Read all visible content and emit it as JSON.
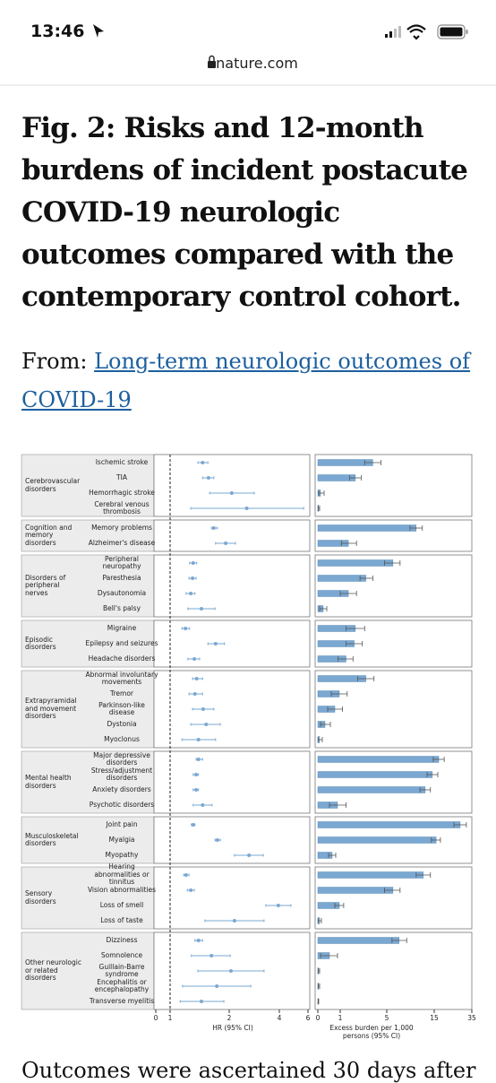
{
  "status_bar": {
    "time": "13:46"
  },
  "browser": {
    "url": "nature.com"
  },
  "article": {
    "title": "Fig. 2: Risks and 12-month burdens of incident postacute COVID-19 neurologic outcomes compared with the contemporary control cohort.",
    "from_label": "From:",
    "link": "Long-term neurologic outcomes of COVID-19",
    "body_text": "Outcomes were ascertained 30 days after"
  },
  "chart_data": {
    "type": "forest",
    "color": "#7aa8d2",
    "reference_line": 1,
    "xlim": [
      0,
      6
    ],
    "xticks": [
      0,
      1,
      2,
      4,
      6
    ],
    "xlabel": "HR (95% CI)",
    "x2lim": [
      0,
      35
    ],
    "x2ticks": [
      0,
      1,
      5,
      15,
      35
    ],
    "x2label": "Excess burden per 1,000 persons (95% CI)",
    "groups": [
      {
        "name": "Cerebrovascular disorders",
        "outcomes": [
          {
            "name": "Ischemic stroke",
            "hr": 1.55,
            "hr_ci": [
              1.47,
              1.64
            ],
            "burden": 3.8,
            "burden_ci": [
              3.1,
              4.5
            ]
          },
          {
            "name": "TIA",
            "hr": 1.65,
            "hr_ci": [
              1.55,
              1.74
            ],
            "burden": 2.3,
            "burden_ci": [
              1.8,
              2.8
            ]
          },
          {
            "name": "Hemorrhagic stroke",
            "hr": 2.1,
            "hr_ci": [
              1.67,
              3.0
            ],
            "burden": 0.12,
            "burden_ci": [
              0.04,
              0.28
            ]
          },
          {
            "name": "Cerebral venous thrombosis",
            "hr": 2.7,
            "hr_ci": [
              1.35,
              5.7
            ],
            "burden": 0.04,
            "burden_ci": [
              0.01,
              0.08
            ]
          }
        ]
      },
      {
        "name": "Cognition and memory disorders",
        "outcomes": [
          {
            "name": "Memory problems",
            "hr": 1.74,
            "hr_ci": [
              1.7,
              1.8
            ],
            "burden": 11.2,
            "burden_ci": [
              9.9,
              12.5
            ]
          },
          {
            "name": "Alzheimer's disease",
            "hr": 1.94,
            "hr_ci": [
              1.77,
              2.25
            ],
            "burden": 1.7,
            "burden_ci": [
              1.1,
              2.4
            ]
          }
        ]
      },
      {
        "name": "Disorders of peripheral nerves",
        "outcomes": [
          {
            "name": "Peripheral neuropathy",
            "hr": 1.39,
            "hr_ci": [
              1.33,
              1.45
            ],
            "burden": 6.3,
            "burden_ci": [
              4.8,
              7.8
            ]
          },
          {
            "name": "Paresthesia",
            "hr": 1.38,
            "hr_ci": [
              1.32,
              1.44
            ],
            "burden": 3.2,
            "burden_ci": [
              2.7,
              3.8
            ]
          },
          {
            "name": "Dysautonomia",
            "hr": 1.35,
            "hr_ci": [
              1.27,
              1.42
            ],
            "burden": 1.7,
            "burden_ci": [
              1.0,
              2.4
            ]
          },
          {
            "name": "Bell's palsy",
            "hr": 1.53,
            "hr_ci": [
              1.3,
              1.76
            ],
            "burden": 0.24,
            "burden_ci": [
              0.08,
              0.4
            ]
          }
        ]
      },
      {
        "name": "Episodic disorders",
        "outcomes": [
          {
            "name": "Migraine",
            "hr": 1.26,
            "hr_ci": [
              1.2,
              1.33
            ],
            "burden": 2.3,
            "burden_ci": [
              1.5,
              3.1
            ]
          },
          {
            "name": "Epilepsy and seizures",
            "hr": 1.77,
            "hr_ci": [
              1.64,
              1.92
            ],
            "burden": 2.2,
            "burden_ci": [
              1.5,
              2.9
            ]
          },
          {
            "name": "Headache disorders",
            "hr": 1.41,
            "hr_ci": [
              1.3,
              1.5
            ],
            "burden": 1.5,
            "burden_ci": [
              0.9,
              2.1
            ]
          }
        ]
      },
      {
        "name": "Extrapyramidal and movement disorders",
        "outcomes": [
          {
            "name": "Abnormal involuntary movements",
            "hr": 1.45,
            "hr_ci": [
              1.38,
              1.55
            ],
            "burden": 3.2,
            "burden_ci": [
              2.5,
              3.9
            ]
          },
          {
            "name": "Tremor",
            "hr": 1.42,
            "hr_ci": [
              1.32,
              1.55
            ],
            "burden": 0.96,
            "burden_ci": [
              0.6,
              1.6
            ]
          },
          {
            "name": "Parkinson-like disease",
            "hr": 1.56,
            "hr_ci": [
              1.38,
              1.74
            ],
            "burden": 0.76,
            "burden_ci": [
              0.44,
              1.2
            ]
          },
          {
            "name": "Dystonia",
            "hr": 1.61,
            "hr_ci": [
              1.35,
              1.85
            ],
            "burden": 0.32,
            "burden_ci": [
              0.12,
              0.56
            ]
          },
          {
            "name": "Myoclonus",
            "hr": 1.48,
            "hr_ci": [
              1.2,
              1.77
            ],
            "burden": 0.08,
            "burden_ci": [
              0.01,
              0.2
            ]
          }
        ]
      },
      {
        "name": "Mental health disorders",
        "outcomes": [
          {
            "name": "Major depressive disorders",
            "hr": 1.48,
            "hr_ci": [
              1.44,
              1.55
            ],
            "burden": 17.4,
            "burden_ci": [
              14.8,
              20.3
            ]
          },
          {
            "name": "Stress/adjustment disorders",
            "hr": 1.44,
            "hr_ci": [
              1.39,
              1.48
            ],
            "burden": 14.6,
            "burden_ci": [
              13.5,
              16.9
            ]
          },
          {
            "name": "Anxiety disorders",
            "hr": 1.44,
            "hr_ci": [
              1.39,
              1.48
            ],
            "burden": 13.1,
            "burden_ci": [
              12.0,
              14.2
            ]
          },
          {
            "name": "Psychotic disorders",
            "hr": 1.55,
            "hr_ci": [
              1.39,
              1.71
            ],
            "burden": 0.88,
            "burden_ci": [
              0.52,
              1.5
            ]
          }
        ]
      },
      {
        "name": "Musculoskeletal disorders",
        "outcomes": [
          {
            "name": "Joint pain",
            "hr": 1.39,
            "hr_ci": [
              1.36,
              1.42
            ],
            "burden": 28.8,
            "burden_ci": [
              25.5,
              32.1
            ]
          },
          {
            "name": "Myalgia",
            "hr": 1.8,
            "hr_ci": [
              1.76,
              1.85
            ],
            "burden": 16,
            "burden_ci": [
              14.4,
              18.3
            ]
          },
          {
            "name": "Myopathy",
            "hr": 2.79,
            "hr_ci": [
              2.21,
              3.36
            ],
            "burden": 0.64,
            "burden_ci": [
              0.48,
              0.8
            ]
          }
        ]
      },
      {
        "name": "Sensory disorders",
        "outcomes": [
          {
            "name": "Hearing abnormalities or tinnitus",
            "hr": 1.27,
            "hr_ci": [
              1.23,
              1.32
            ],
            "burden": 12.7,
            "burden_ci": [
              11.2,
              14.2
            ]
          },
          {
            "name": "Vision abnormalities",
            "hr": 1.35,
            "hr_ci": [
              1.29,
              1.41
            ],
            "burden": 6.3,
            "burden_ci": [
              4.8,
              7.8
            ]
          },
          {
            "name": "Loss of smell",
            "hr": 3.96,
            "hr_ci": [
              3.46,
              4.81
            ],
            "burden": 0.96,
            "burden_ci": [
              0.76,
              1.3
            ]
          },
          {
            "name": "Loss of taste",
            "hr": 2.21,
            "hr_ci": [
              1.59,
              3.39
            ],
            "burden": 0.08,
            "burden_ci": [
              0.01,
              0.16
            ]
          }
        ]
      },
      {
        "name": "Other neurologic or related disorders",
        "outcomes": [
          {
            "name": "Dizziness",
            "hr": 1.48,
            "hr_ci": [
              1.42,
              1.55
            ],
            "burden": 7.6,
            "burden_ci": [
              6.1,
              9.2
            ]
          },
          {
            "name": "Somnolence",
            "hr": 1.7,
            "hr_ci": [
              1.36,
              2.04
            ],
            "burden": 0.52,
            "burden_ci": [
              0.12,
              0.88
            ]
          },
          {
            "name": "Guillain-Barre syndrome",
            "hr": 2.07,
            "hr_ci": [
              1.47,
              3.39
            ],
            "burden": 0.04,
            "burden_ci": [
              0.01,
              0.08
            ]
          },
          {
            "name": "Encephalitis or encephalopathy",
            "hr": 1.79,
            "hr_ci": [
              1.21,
              2.86
            ],
            "burden": 0.04,
            "burden_ci": [
              0.01,
              0.08
            ]
          },
          {
            "name": "Transverse myelitis",
            "hr": 1.53,
            "hr_ci": [
              1.17,
              1.91
            ],
            "burden": 0.02,
            "burden_ci": [
              0.01,
              0.04
            ]
          }
        ]
      }
    ]
  }
}
